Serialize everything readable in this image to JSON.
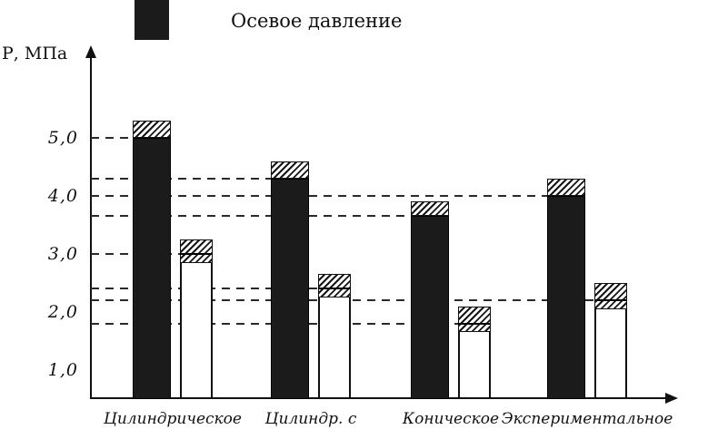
{
  "legend": {
    "label": "Осевое давление"
  },
  "y_axis_label": "Р, МПа",
  "chart_data": {
    "type": "bar",
    "title": "",
    "xlabel": "",
    "ylabel": "Р, МПа",
    "ylim": [
      0.5,
      5.9
    ],
    "grid": "dashed horizontal reference lines from axis to bar tops",
    "legend_position": "top-left",
    "legend_entries": [
      "Осевое давление"
    ],
    "yticks": [
      5.0,
      4.0,
      3.0,
      2.0,
      1.0
    ],
    "ytick_labels": [
      "5,0",
      "4,0",
      "3,0",
      "2,0",
      "1,0"
    ],
    "categories": [
      "Цилиндрическое",
      "Цилиндр. с",
      "Коническое",
      "Экспериментальное"
    ],
    "series": [
      {
        "name": "Осевое давление",
        "style": "solid-black",
        "values": [
          5.0,
          4.3,
          3.65,
          4.0
        ],
        "hatch_band_bottom": [
          5.0,
          4.3,
          3.65,
          4.0
        ],
        "hatch_band_top": [
          5.3,
          4.6,
          3.9,
          4.3
        ]
      },
      {
        "name": "",
        "style": "white-outlined",
        "values": [
          3.0,
          2.4,
          1.8,
          2.2
        ],
        "hatch_band_bottom": [
          2.85,
          2.25,
          1.65,
          2.05
        ],
        "hatch_band_top": [
          3.25,
          2.65,
          2.1,
          2.5
        ]
      }
    ],
    "reference_lines": [
      {
        "value": 5.0,
        "series": 0,
        "category": 0
      },
      {
        "value": 4.3,
        "series": 0,
        "category": 1
      },
      {
        "value": 3.65,
        "series": 0,
        "category": 2
      },
      {
        "value": 4.0,
        "series": 0,
        "category": 3
      },
      {
        "value": 3.0,
        "series": 1,
        "category": 0
      },
      {
        "value": 2.4,
        "series": 1,
        "category": 1
      },
      {
        "value": 1.8,
        "series": 1,
        "category": 2
      },
      {
        "value": 2.2,
        "series": 1,
        "category": 3
      }
    ]
  }
}
